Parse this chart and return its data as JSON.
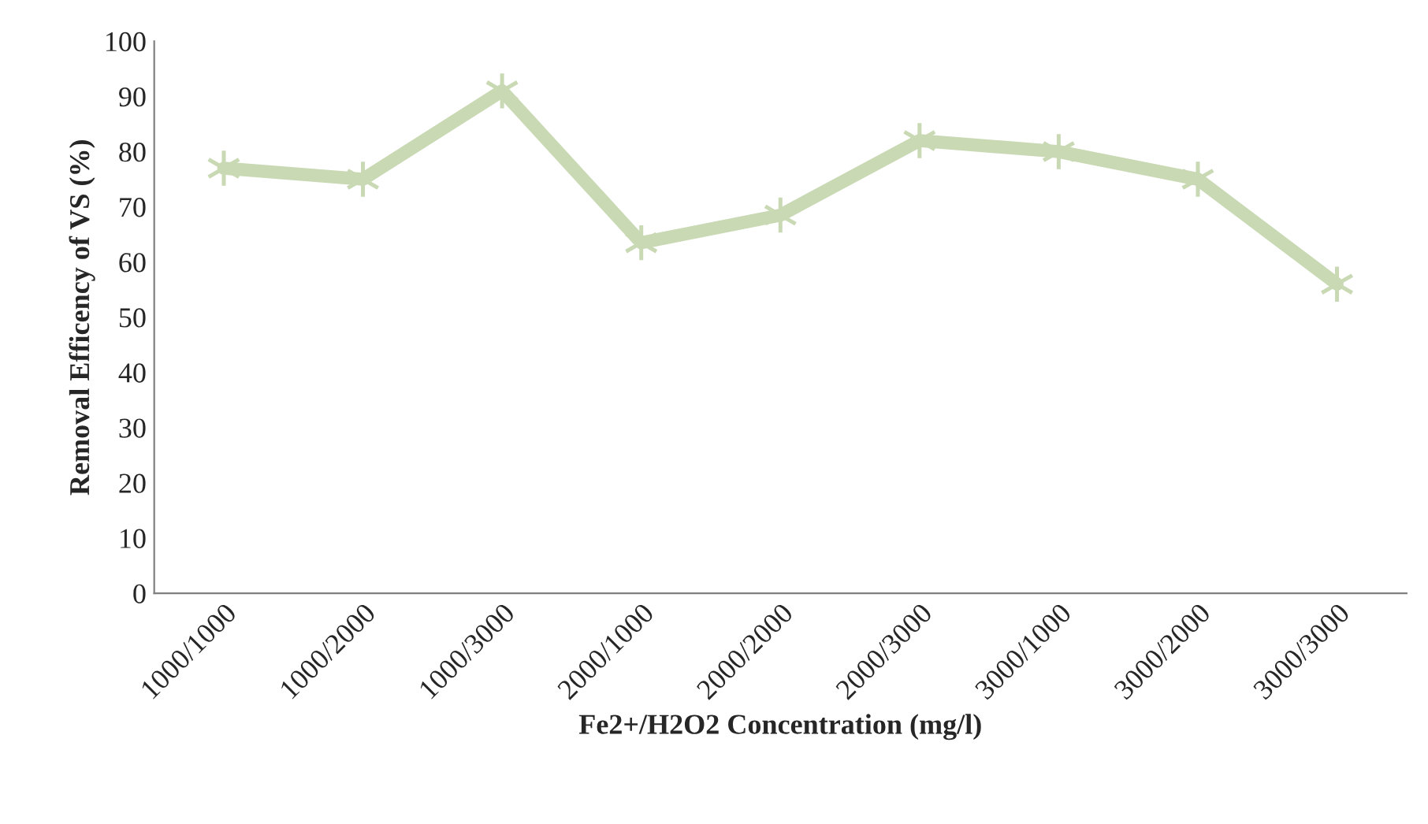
{
  "chart_data": {
    "type": "line",
    "xlabel": "Fe2+/H2O2 Concentration (mg/l)",
    "ylabel": "Removal Efficency of VS (%)",
    "categories": [
      "1000/1000",
      "1000/2000",
      "1000/3000",
      "2000/1000",
      "2000/2000",
      "2000/3000",
      "3000/1000",
      "3000/2000",
      "3000/3000"
    ],
    "series": [
      {
        "color": "#c9d9b4",
        "values": [
          77,
          75,
          91,
          63.5,
          68.5,
          82,
          80,
          75,
          56
        ]
      }
    ],
    "ylim": [
      0,
      100
    ],
    "yticks": [
      0,
      10,
      20,
      30,
      40,
      50,
      60,
      70,
      80,
      90,
      100
    ],
    "grid": false,
    "marker": "cross",
    "line_style": "solid"
  }
}
